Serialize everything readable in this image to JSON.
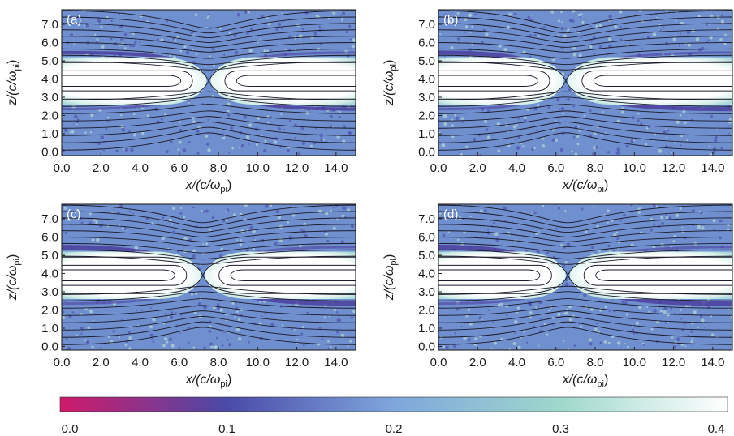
{
  "figure": {
    "panels": [
      {
        "letter": "(a)",
        "x_tick_labels": [
          "0.0",
          "2.0",
          "4.0",
          "6.0",
          "8.0",
          "10.0",
          "12.0",
          "14.0"
        ],
        "y_tick_labels": [
          "0.0",
          "1.0",
          "2.0",
          "3.0",
          "4.0",
          "5.0",
          "6.0",
          "7.0"
        ],
        "xlabel": "x/(c/ω",
        "xlabel_sub": "pi",
        "xlabel_end": ")",
        "ylabel": "z/(c/ω",
        "ylabel_sub": "pi",
        "ylabel_end": ")",
        "x_point": 7.5,
        "tilt": 0.0
      },
      {
        "letter": "(b)",
        "x_tick_labels": [
          "0.0",
          "2.0",
          "4.0",
          "6.0",
          "8.0",
          "10.0",
          "12.0",
          "14.0"
        ],
        "y_tick_labels": [
          "0.0",
          "1.0",
          "2.0",
          "3.0",
          "4.0",
          "5.0",
          "6.0",
          "7.0"
        ],
        "xlabel": "x/(c/ω",
        "xlabel_sub": "pi",
        "xlabel_end": ")",
        "ylabel": "z/(c/ω",
        "ylabel_sub": "pi",
        "ylabel_end": ")",
        "x_point": 6.5,
        "tilt": 0.25
      },
      {
        "letter": "(c)",
        "x_tick_labels": [
          "0.0",
          "2.0",
          "4.0",
          "6.0",
          "8.0",
          "10.0",
          "12.0",
          "14.0"
        ],
        "y_tick_labels": [
          "0.0",
          "1.0",
          "2.0",
          "3.0",
          "4.0",
          "5.0",
          "6.0",
          "7.0"
        ],
        "xlabel": "x/(c/ω",
        "xlabel_sub": "pi",
        "xlabel_end": ")",
        "ylabel": "z/(c/ω",
        "ylabel_sub": "pi",
        "ylabel_end": ")",
        "x_point": 7.2,
        "tilt": 0.35
      },
      {
        "letter": "(d)",
        "x_tick_labels": [
          "0.0",
          "2.0",
          "4.0",
          "6.0",
          "8.0",
          "10.0",
          "12.0",
          "14.0"
        ],
        "y_tick_labels": [
          "0.0",
          "1.0",
          "2.0",
          "3.0",
          "4.0",
          "5.0",
          "6.0",
          "7.0"
        ],
        "xlabel": "x/(c/ω",
        "xlabel_sub": "pi",
        "xlabel_end": ")",
        "ylabel": "z/(c/ω",
        "ylabel_sub": "pi",
        "ylabel_end": ")",
        "x_point": 6.6,
        "tilt": 0.45
      }
    ],
    "x_ticks": [
      0,
      2,
      4,
      6,
      8,
      10,
      12,
      14
    ],
    "y_ticks": [
      0,
      1,
      2,
      3,
      4,
      5,
      6,
      7
    ],
    "xlim": [
      0,
      15
    ],
    "ylim": [
      -0.2,
      7.8
    ],
    "colorbar": {
      "tick_labels": [
        "0.0",
        "0.1",
        "0.2",
        "0.3",
        "0.4"
      ],
      "ticks": [
        0,
        0.1,
        0.2,
        0.3,
        0.4
      ],
      "range": [
        0,
        0.4
      ],
      "colors": [
        "#d01a6a",
        "#4a4aa8",
        "#7fa6dc",
        "#9fd8cc",
        "#ffffff"
      ]
    },
    "colors": {
      "background": "#6f8fcf",
      "sheet_core": "#ffffff",
      "sheet_edge": "#d4efe8",
      "sheet_rim": "#4a3a9a",
      "speckle": "#c8ecd8",
      "field_line": "#1a1a2a"
    }
  }
}
